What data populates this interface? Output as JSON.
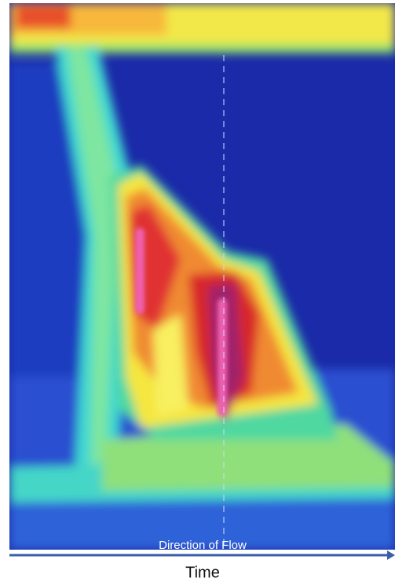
{
  "annotation": "Direction of Flow",
  "axis_label": "Time"
}
